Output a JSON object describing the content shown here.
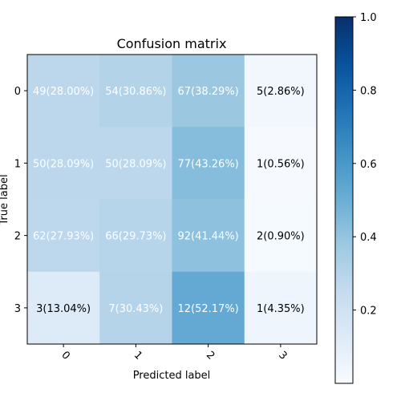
{
  "chart_data": {
    "type": "heatmap",
    "title": "Confusion matrix",
    "xlabel": "Predicted label",
    "ylabel": "True label",
    "x_categories": [
      "0",
      "1",
      "2",
      "3"
    ],
    "y_categories": [
      "0",
      "1",
      "2",
      "3"
    ],
    "values": [
      [
        0.28,
        0.3086,
        0.3829,
        0.0286
      ],
      [
        0.2809,
        0.2809,
        0.4326,
        0.0056
      ],
      [
        0.2793,
        0.2973,
        0.4144,
        0.009
      ],
      [
        0.1304,
        0.3043,
        0.5217,
        0.0435
      ]
    ],
    "cell_labels": [
      [
        "49(28.00%)",
        "54(30.86%)",
        "67(38.29%)",
        "5(2.86%)"
      ],
      [
        "50(28.09%)",
        "50(28.09%)",
        "77(43.26%)",
        "1(0.56%)"
      ],
      [
        "62(27.93%)",
        "66(29.73%)",
        "92(41.44%)",
        "2(0.90%)"
      ],
      [
        "3(13.04%)",
        "7(30.43%)",
        "12(52.17%)",
        "1(4.35%)"
      ]
    ],
    "text_colors": [
      [
        "#ffffff",
        "#ffffff",
        "#ffffff",
        "#000000"
      ],
      [
        "#ffffff",
        "#ffffff",
        "#ffffff",
        "#000000"
      ],
      [
        "#ffffff",
        "#ffffff",
        "#ffffff",
        "#000000"
      ],
      [
        "#000000",
        "#ffffff",
        "#ffffff",
        "#000000"
      ]
    ],
    "colormap": "Blues",
    "colorbar": {
      "ticks": [
        "0.2",
        "0.4",
        "0.6",
        "0.8",
        "1.0"
      ],
      "tick_values": [
        0.2,
        0.4,
        0.6,
        0.8,
        1.0
      ],
      "range": [
        0.0,
        1.0
      ]
    },
    "xtick_rotation": 45,
    "legend_placement": "colorbar-right"
  }
}
